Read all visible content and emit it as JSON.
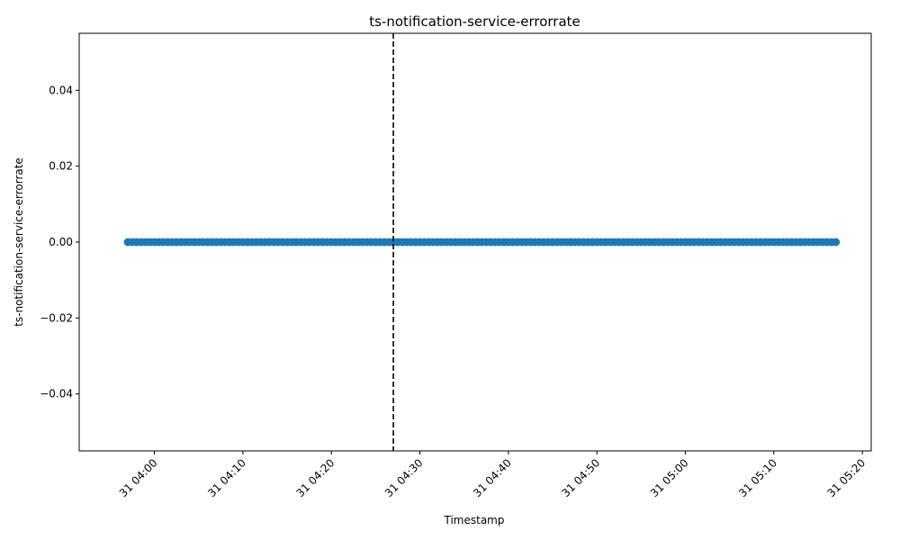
{
  "chart_data": {
    "type": "scatter",
    "title": "ts-notification-service-errorrate",
    "xlabel": "Timestamp",
    "ylabel": "ts-notification-service-errorrate",
    "x_start": "31 03:57",
    "x_end": "31 05:17",
    "x_step_seconds": 30,
    "y_value": 0.0,
    "xlim": [
      "31 03:51:30",
      "31 05:21:00"
    ],
    "ylim": [
      -0.055,
      0.055
    ],
    "x_ticks": [
      "31 04:00",
      "31 04:10",
      "31 04:20",
      "31 04:30",
      "31 04:40",
      "31 04:50",
      "31 05:00",
      "31 05:10",
      "31 05:20"
    ],
    "y_ticks": [
      "0.04",
      "0.02",
      "0.00",
      "−0.02",
      "−0.04"
    ],
    "y_tick_values": [
      0.04,
      0.02,
      0.0,
      -0.02,
      -0.04
    ],
    "vline_x": "31 04:27",
    "point_color": "#1f77b4",
    "vline_color": "#000000",
    "grid": false,
    "legend": false
  }
}
